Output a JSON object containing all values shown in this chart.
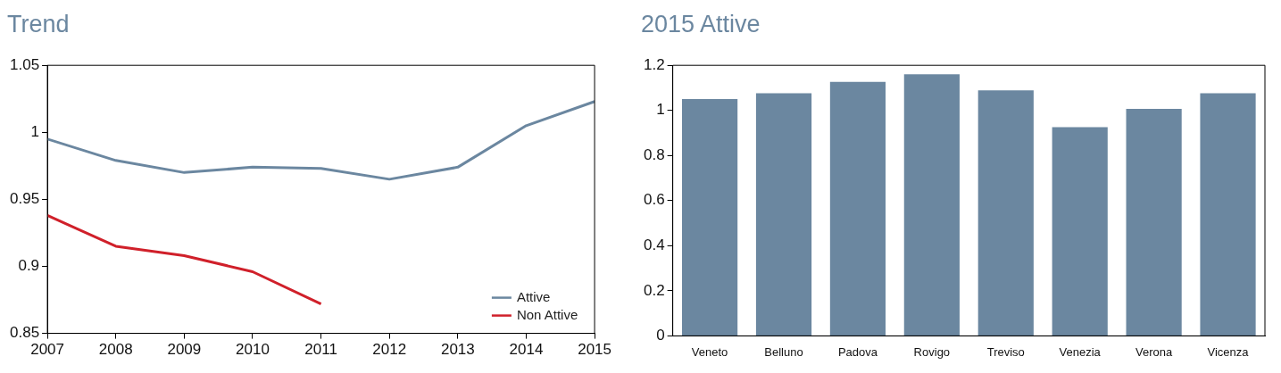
{
  "chart_data": [
    {
      "type": "line",
      "title": "Trend",
      "x": [
        2007,
        2008,
        2009,
        2010,
        2011,
        2012,
        2013,
        2014,
        2015
      ],
      "xlim": [
        2007,
        2015
      ],
      "xticks": [
        2007,
        2008,
        2009,
        2010,
        2011,
        2012,
        2013,
        2014,
        2015
      ],
      "ylim": [
        0.85,
        1.05
      ],
      "yticks": [
        0.85,
        0.9,
        0.95,
        1,
        1.05
      ],
      "grid": false,
      "legend": "bottom right",
      "marker": "none",
      "series": [
        {
          "name": "Attive",
          "color": "#6b87a0",
          "values": [
            0.995,
            0.979,
            0.97,
            0.974,
            0.973,
            0.965,
            0.974,
            1.005,
            1.023
          ]
        },
        {
          "name": "Non Attive",
          "color": "#d0202a",
          "values": [
            0.938,
            0.915,
            0.908,
            0.896,
            0.872,
            null,
            null,
            null,
            null
          ]
        }
      ]
    },
    {
      "type": "bar",
      "title": "2015 Attive",
      "categories": [
        "Veneto",
        "Belluno",
        "Padova",
        "Rovigo",
        "Treviso",
        "Venezia",
        "Verona",
        "Vicenza"
      ],
      "values": [
        1.05,
        1.076,
        1.127,
        1.16,
        1.089,
        0.926,
        1.007,
        1.076
      ],
      "color": "#6b87a0",
      "ylim": [
        0,
        1.2
      ],
      "yticks": [
        0,
        0.2,
        0.4,
        0.6,
        0.8,
        1,
        1.2
      ],
      "grid": false,
      "legend": false
    }
  ]
}
